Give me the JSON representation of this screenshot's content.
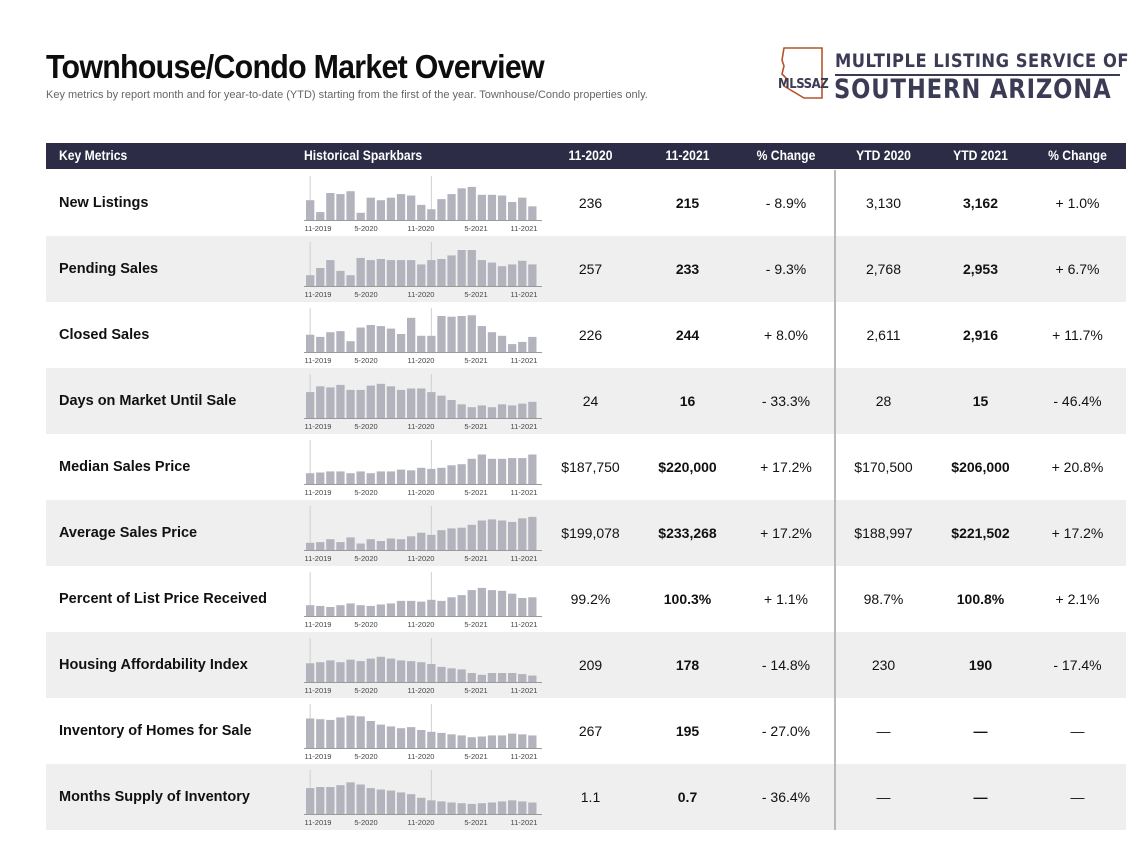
{
  "header": {
    "title": "Townhouse/Condo Market Overview",
    "subtitle": "Key metrics by report month and for year-to-date (YTD) starting from the first of the year. Townhouse/Condo properties only."
  },
  "logo": {
    "mark_text": "MLSSAZ",
    "line1": "MULTIPLE LISTING SERVICE OF",
    "line2": "SOUTHERN ARIZONA",
    "color": "#3b3b55",
    "accent": "#b5542b"
  },
  "table": {
    "columns": [
      "Key Metrics",
      "Historical Sparkbars",
      "11-2020",
      "11-2021",
      "% Change",
      "YTD 2020",
      "YTD 2021",
      "% Change"
    ],
    "spark_ticks": [
      "11-2019",
      "5-2020",
      "11-2020",
      "5-2021",
      "11-2021"
    ],
    "rows": [
      {
        "metric": "New Listings",
        "m2020": "236",
        "m2021": "215",
        "chg": "- 8.9%",
        "ytd2020": "3,130",
        "ytd2021": "3,162",
        "ytdchg": "+ 1.0%",
        "bars": [
          0.55,
          0.22,
          0.75,
          0.72,
          0.8,
          0.2,
          0.62,
          0.55,
          0.62,
          0.72,
          0.68,
          0.42,
          0.3,
          0.58,
          0.72,
          0.88,
          0.92,
          0.7,
          0.7,
          0.68,
          0.5,
          0.62,
          0.38
        ]
      },
      {
        "metric": "Pending Sales",
        "m2020": "257",
        "m2021": "233",
        "chg": "- 9.3%",
        "ytd2020": "2,768",
        "ytd2021": "2,953",
        "ytdchg": "+ 6.7%",
        "bars": [
          0.3,
          0.5,
          0.72,
          0.42,
          0.3,
          0.78,
          0.72,
          0.75,
          0.72,
          0.72,
          0.72,
          0.6,
          0.72,
          0.75,
          0.85,
          1.0,
          1.0,
          0.72,
          0.65,
          0.55,
          0.6,
          0.7,
          0.6
        ]
      },
      {
        "metric": "Closed Sales",
        "m2020": "226",
        "m2021": "244",
        "chg": "+ 8.0%",
        "ytd2020": "2,611",
        "ytd2021": "2,916",
        "ytdchg": "+ 11.7%",
        "bars": [
          0.48,
          0.42,
          0.55,
          0.58,
          0.3,
          0.68,
          0.75,
          0.72,
          0.65,
          0.5,
          0.95,
          0.45,
          0.45,
          1.0,
          0.98,
          1.0,
          1.02,
          0.72,
          0.55,
          0.45,
          0.22,
          0.28,
          0.42
        ]
      },
      {
        "metric": "Days on Market Until Sale",
        "m2020": "24",
        "m2021": "16",
        "chg": "- 33.3%",
        "ytd2020": "28",
        "ytd2021": "15",
        "ytdchg": "- 46.4%",
        "bars": [
          0.72,
          0.88,
          0.85,
          0.92,
          0.78,
          0.78,
          0.9,
          0.95,
          0.88,
          0.78,
          0.82,
          0.82,
          0.72,
          0.62,
          0.5,
          0.38,
          0.3,
          0.35,
          0.3,
          0.38,
          0.35,
          0.4,
          0.45
        ]
      },
      {
        "metric": "Median Sales Price",
        "m2020": "$187,750",
        "m2021": "$220,000",
        "chg": "+ 17.2%",
        "ytd2020": "$170,500",
        "ytd2021": "$206,000",
        "ytdchg": "+ 20.8%",
        "bars": [
          0.3,
          0.32,
          0.35,
          0.35,
          0.3,
          0.35,
          0.3,
          0.35,
          0.35,
          0.4,
          0.38,
          0.45,
          0.42,
          0.45,
          0.52,
          0.55,
          0.7,
          0.82,
          0.7,
          0.7,
          0.72,
          0.72,
          0.82
        ]
      },
      {
        "metric": "Average Sales Price",
        "m2020": "$199,078",
        "m2021": "$233,268",
        "chg": "+ 17.2%",
        "ytd2020": "$188,997",
        "ytd2021": "$221,502",
        "ytdchg": "+ 17.2%",
        "bars": [
          0.2,
          0.22,
          0.3,
          0.22,
          0.35,
          0.18,
          0.3,
          0.25,
          0.32,
          0.3,
          0.38,
          0.48,
          0.42,
          0.55,
          0.6,
          0.62,
          0.7,
          0.82,
          0.85,
          0.82,
          0.78,
          0.88,
          0.92
        ]
      },
      {
        "metric": "Percent of List Price Received",
        "m2020": "99.2%",
        "m2021": "100.3%",
        "chg": "+ 1.1%",
        "ytd2020": "98.7%",
        "ytd2021": "100.8%",
        "ytdchg": "+ 2.1%",
        "bars": [
          0.3,
          0.28,
          0.25,
          0.3,
          0.35,
          0.3,
          0.28,
          0.32,
          0.35,
          0.42,
          0.42,
          0.4,
          0.45,
          0.42,
          0.52,
          0.58,
          0.72,
          0.78,
          0.72,
          0.7,
          0.62,
          0.5,
          0.52
        ]
      },
      {
        "metric": "Housing Affordability Index",
        "m2020": "209",
        "m2021": "178",
        "chg": "- 14.8%",
        "ytd2020": "230",
        "ytd2021": "190",
        "ytdchg": "- 17.4%",
        "bars": [
          0.52,
          0.55,
          0.6,
          0.55,
          0.62,
          0.58,
          0.65,
          0.7,
          0.65,
          0.6,
          0.58,
          0.55,
          0.5,
          0.42,
          0.38,
          0.35,
          0.25,
          0.2,
          0.25,
          0.25,
          0.25,
          0.22,
          0.18
        ]
      },
      {
        "metric": "Inventory of Homes for Sale",
        "m2020": "267",
        "m2021": "195",
        "chg": "- 27.0%",
        "ytd2020": "—",
        "ytd2021": "—",
        "ytdchg": "—",
        "bars": [
          0.82,
          0.8,
          0.78,
          0.85,
          0.9,
          0.88,
          0.75,
          0.65,
          0.6,
          0.55,
          0.58,
          0.5,
          0.45,
          0.42,
          0.38,
          0.35,
          0.3,
          0.32,
          0.35,
          0.35,
          0.4,
          0.38,
          0.35
        ]
      },
      {
        "metric": "Months Supply of Inventory",
        "m2020": "1.1",
        "m2021": "0.7",
        "chg": "- 36.4%",
        "ytd2020": "—",
        "ytd2021": "—",
        "ytdchg": "—",
        "bars": [
          0.72,
          0.75,
          0.75,
          0.8,
          0.88,
          0.82,
          0.72,
          0.68,
          0.65,
          0.6,
          0.55,
          0.45,
          0.38,
          0.35,
          0.32,
          0.3,
          0.28,
          0.3,
          0.32,
          0.35,
          0.38,
          0.35,
          0.32
        ]
      }
    ]
  },
  "colors": {
    "header_bg": "#2c2c46",
    "bar": "#b3b3bd",
    "row_shade": "#efefef"
  }
}
